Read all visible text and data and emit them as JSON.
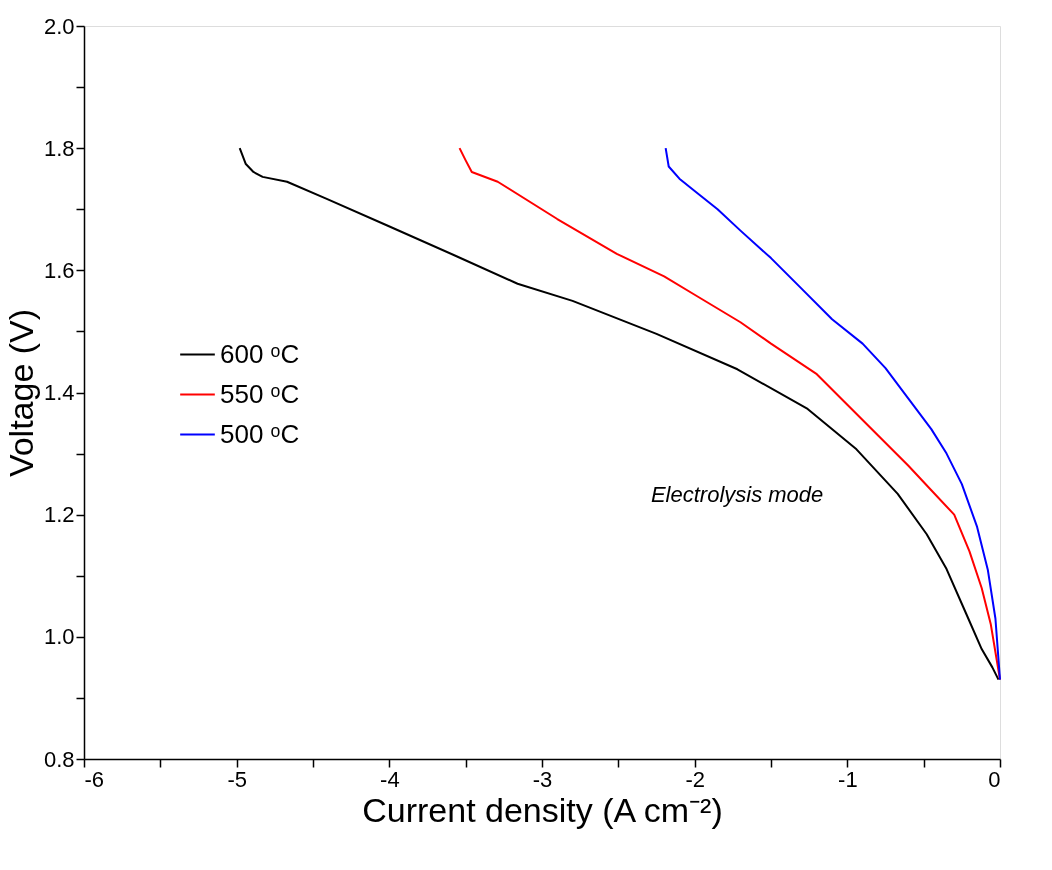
{
  "chart_data": {
    "type": "line",
    "xlabel": "Current density (A cm⁻²)",
    "ylabel": "Voltage (V)",
    "annotations": [
      "Electrolysis mode"
    ],
    "xlim": [
      -6,
      0
    ],
    "ylim": [
      0.8,
      2.0
    ],
    "xticks": [
      -6,
      {
        "value": -5.5,
        "label": null
      },
      -5,
      {
        "value": -4.5,
        "label": null
      },
      -4,
      {
        "value": -3.5,
        "label": null
      },
      -3,
      {
        "value": -2.5,
        "label": null
      },
      -2,
      {
        "value": -1.5,
        "label": null
      },
      -1,
      {
        "value": -0.5,
        "label": null
      },
      0
    ],
    "yticks": [
      {
        "value": 0.8,
        "label": "0.8"
      },
      {
        "value": 0.9,
        "label": null
      },
      {
        "value": 1.0,
        "label": "1.0"
      },
      {
        "value": 1.1,
        "label": null
      },
      {
        "value": 1.2,
        "label": "1.2"
      },
      {
        "value": 1.3,
        "label": null
      },
      {
        "value": 1.4,
        "label": "1.4"
      },
      {
        "value": 1.5,
        "label": null
      },
      {
        "value": 1.6,
        "label": "1.6"
      },
      {
        "value": 1.7,
        "label": null
      },
      {
        "value": 1.8,
        "label": "1.8"
      },
      {
        "value": 1.9,
        "label": null
      },
      {
        "value": 2.0,
        "label": "2.0"
      }
    ],
    "grid": false,
    "legend": "left",
    "marker": "none",
    "line_style": "solid",
    "series": [
      {
        "name": "600 ᵒC",
        "color": "#000000",
        "x": [
          -4.98,
          -4.94,
          -4.89,
          -4.83,
          -4.67,
          -4.41,
          -4.01,
          -3.56,
          -3.16,
          -2.8,
          -2.25,
          -1.72,
          -1.26,
          -0.94,
          -0.67,
          -0.48,
          -0.35,
          -0.22,
          -0.12,
          -0.05,
          -0.01
        ],
        "values": [
          1.8,
          1.774,
          1.761,
          1.753,
          1.745,
          1.717,
          1.673,
          1.623,
          1.578,
          1.55,
          1.496,
          1.438,
          1.373,
          1.307,
          1.234,
          1.168,
          1.111,
          1.037,
          0.98,
          0.95,
          0.93
        ]
      },
      {
        "name": "550 ᵒC",
        "color": "#ff0000",
        "x": [
          -3.54,
          -3.5,
          -3.46,
          -3.29,
          -2.9,
          -2.51,
          -2.2,
          -2.0,
          -1.7,
          -1.5,
          -1.2,
          -1.0,
          -0.8,
          -0.6,
          -0.45,
          -0.3,
          -0.2,
          -0.12,
          -0.06,
          -0.02,
          0.0
        ],
        "values": [
          1.8,
          1.78,
          1.761,
          1.745,
          1.684,
          1.627,
          1.59,
          1.56,
          1.515,
          1.48,
          1.43,
          1.38,
          1.33,
          1.28,
          1.24,
          1.2,
          1.14,
          1.08,
          1.02,
          0.96,
          0.93
        ]
      },
      {
        "name": "500 ᵒC",
        "color": "#0000ff",
        "x": [
          -2.19,
          -2.17,
          -2.1,
          -2.0,
          -1.85,
          -1.7,
          -1.5,
          -1.3,
          -1.1,
          -0.9,
          -0.75,
          -0.6,
          -0.45,
          -0.35,
          -0.25,
          -0.15,
          -0.08,
          -0.03,
          0.0
        ],
        "values": [
          1.8,
          1.77,
          1.75,
          1.73,
          1.7,
          1.665,
          1.62,
          1.57,
          1.52,
          1.48,
          1.44,
          1.39,
          1.34,
          1.3,
          1.25,
          1.18,
          1.11,
          1.03,
          0.93
        ]
      }
    ]
  }
}
